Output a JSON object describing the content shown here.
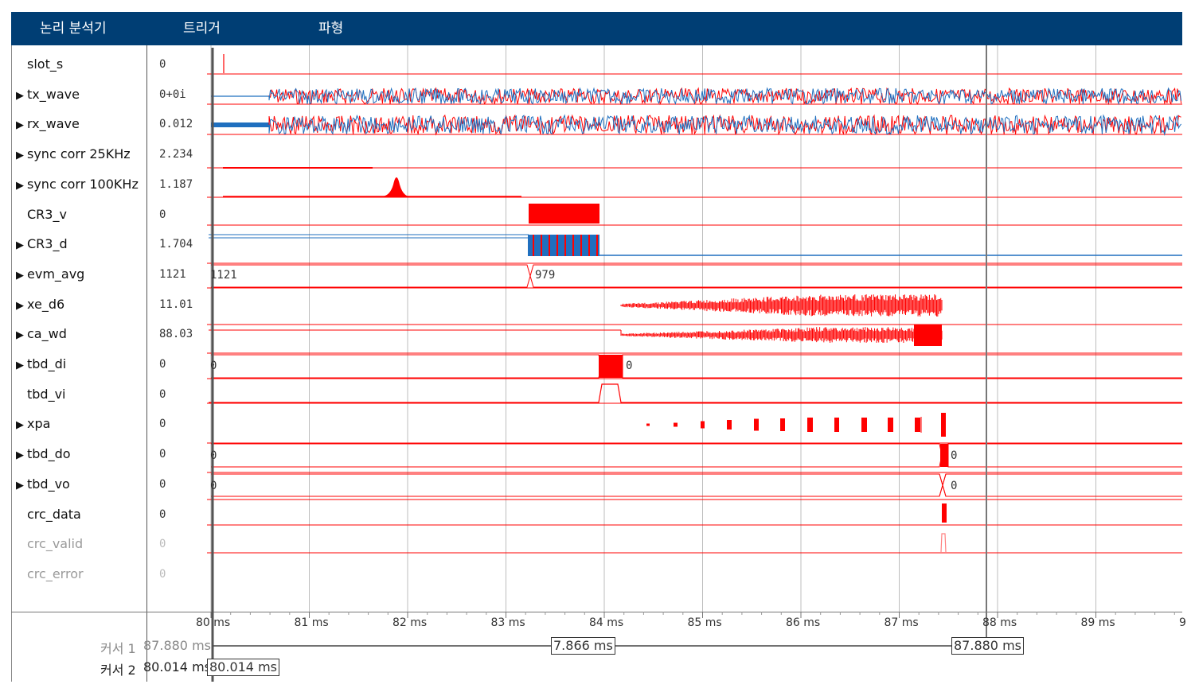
{
  "menu": [
    {
      "label": "논리 분석기"
    },
    {
      "label": "트리거"
    },
    {
      "label": "파형"
    }
  ],
  "signals": [
    {
      "name": "slot_s",
      "expandable": false,
      "value": "0"
    },
    {
      "name": "tx_wave",
      "expandable": true,
      "value": "0+0i"
    },
    {
      "name": "rx_wave",
      "expandable": true,
      "value": "0.012"
    },
    {
      "name": "sync corr 25KHz",
      "expandable": true,
      "value": "2.234"
    },
    {
      "name": "sync corr 100KHz",
      "expandable": true,
      "value": "1.187"
    },
    {
      "name": "CR3_v",
      "expandable": false,
      "value": "0"
    },
    {
      "name": "CR3_d",
      "expandable": true,
      "value": "1.704"
    },
    {
      "name": "evm_avg",
      "expandable": true,
      "value": "1121"
    },
    {
      "name": "xe_d6",
      "expandable": true,
      "value": "11.01"
    },
    {
      "name": "ca_wd",
      "expandable": true,
      "value": "88.03"
    },
    {
      "name": "tbd_di",
      "expandable": true,
      "value": "0"
    },
    {
      "name": "tbd_vi",
      "expandable": false,
      "value": "0"
    },
    {
      "name": "xpa",
      "expandable": true,
      "value": "0"
    },
    {
      "name": "tbd_do",
      "expandable": true,
      "value": "0"
    },
    {
      "name": "tbd_vo",
      "expandable": true,
      "value": "0"
    },
    {
      "name": "crc_data",
      "expandable": false,
      "value": "0"
    },
    {
      "name": "crc_valid",
      "expandable": false,
      "value": "0",
      "dim": true
    },
    {
      "name": "crc_error",
      "expandable": false,
      "value": "0",
      "dim": true
    }
  ],
  "axis": {
    "ticks": [
      "80 ms",
      "81 ms",
      "82 ms",
      "83 ms",
      "84 ms",
      "85 ms",
      "86 ms",
      "87 ms",
      "88 ms",
      "89 ms",
      "9"
    ]
  },
  "wave_labels": {
    "evm_before": "1121",
    "evm_after": "979",
    "tbd_di_before": "0",
    "tbd_di_after": "0",
    "tbd_do_before": "0",
    "tbd_do_after": "0",
    "tbd_vo_before": "0",
    "tbd_vo_after": "0"
  },
  "cursors": {
    "cursor1_label": "커서 1",
    "cursor1_value": "87.880 ms",
    "cursor2_label": "커서 2",
    "cursor2_value": "80.014 ms",
    "delta": "7.866 ms"
  },
  "colors": {
    "header_bg": "#003e74",
    "wave_red": "#ff0000",
    "wave_blue": "#1f6fbf",
    "row_line": "#ff0000"
  }
}
